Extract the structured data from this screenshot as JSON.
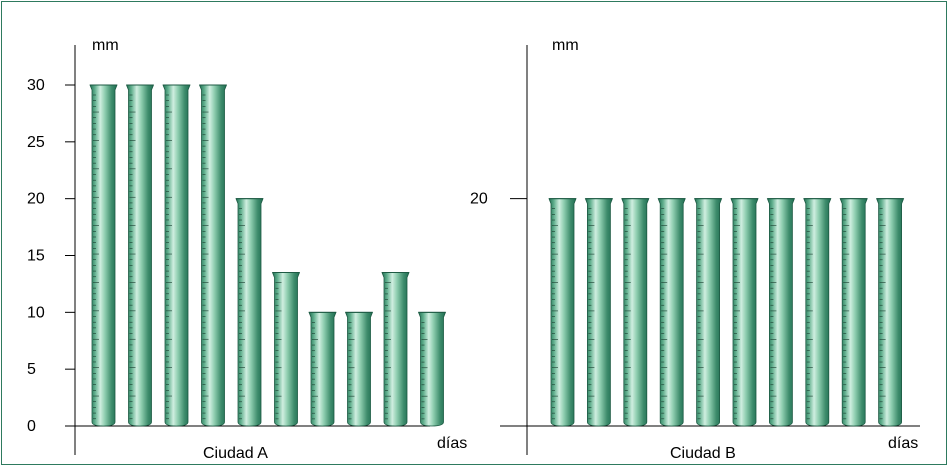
{
  "accent": "#2e7a5e",
  "tube_colors": [
    "#1f6e52",
    "#5fae8c",
    "#cfeee0",
    "#8fceb0",
    "#3e8c6c"
  ],
  "chart_data": [
    {
      "type": "bar",
      "caption": "Ciudad A",
      "ylabel": "mm",
      "xlabel": "días",
      "ylim": [
        0,
        30
      ],
      "yticks": [
        "0",
        "5",
        "10",
        "15",
        "20",
        "25",
        "30"
      ],
      "values": [
        30,
        30,
        30,
        30,
        20,
        13.5,
        10,
        10,
        13.5,
        10
      ]
    },
    {
      "type": "bar",
      "caption": "Ciudad B",
      "ylabel": "mm",
      "xlabel": "días",
      "ylim": [
        0,
        30
      ],
      "yticks": [
        "20"
      ],
      "ytick_values": [
        20
      ],
      "values": [
        20,
        20,
        20,
        20,
        20,
        20,
        20,
        20,
        20,
        20
      ]
    }
  ]
}
